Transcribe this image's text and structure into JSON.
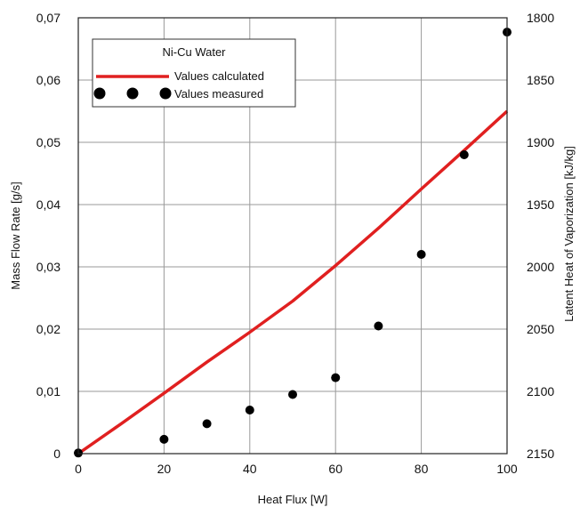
{
  "chart_data": {
    "type": "line",
    "xlabel": "Heat Flux [W]",
    "ylabel": "Mass Flow Rate [g/s]",
    "y2label": "Latent Heat of Vaporization [kJ/kg]",
    "xlim": [
      0,
      100
    ],
    "ylim": [
      0,
      0.07
    ],
    "y2lim": [
      1800,
      2150
    ],
    "y2_inverted": true,
    "x_ticks": [
      "0",
      "20",
      "40",
      "60",
      "80",
      "100"
    ],
    "y_ticks": [
      "0",
      "0,01",
      "0,02",
      "0,03",
      "0,04",
      "0,05",
      "0,06",
      "0,07"
    ],
    "y2_ticks": [
      "1800",
      "1850",
      "1900",
      "1950",
      "2000",
      "2050",
      "2100",
      "2150"
    ],
    "grid": true,
    "legend": {
      "title": "Ni-Cu Water",
      "placement": "top-left",
      "entries": [
        "Values calculated",
        "Values measured"
      ]
    },
    "series": [
      {
        "name": "Values calculated",
        "style": "line",
        "color": "#e02020",
        "x": [
          0,
          10,
          20,
          30,
          40,
          50,
          60,
          70,
          80,
          90,
          100
        ],
        "y": [
          0.0,
          0.0048,
          0.0097,
          0.0147,
          0.0195,
          0.0245,
          0.0302,
          0.0362,
          0.0425,
          0.0487,
          0.055
        ]
      },
      {
        "name": "Values measured",
        "style": "scatter",
        "color": "#000000",
        "x": [
          0,
          20,
          30,
          40,
          50,
          60,
          70,
          80,
          90,
          100
        ],
        "y": [
          0.0001,
          0.0023,
          0.0048,
          0.007,
          0.0095,
          0.0122,
          0.0205,
          0.032,
          0.048,
          0.0677
        ]
      }
    ]
  }
}
